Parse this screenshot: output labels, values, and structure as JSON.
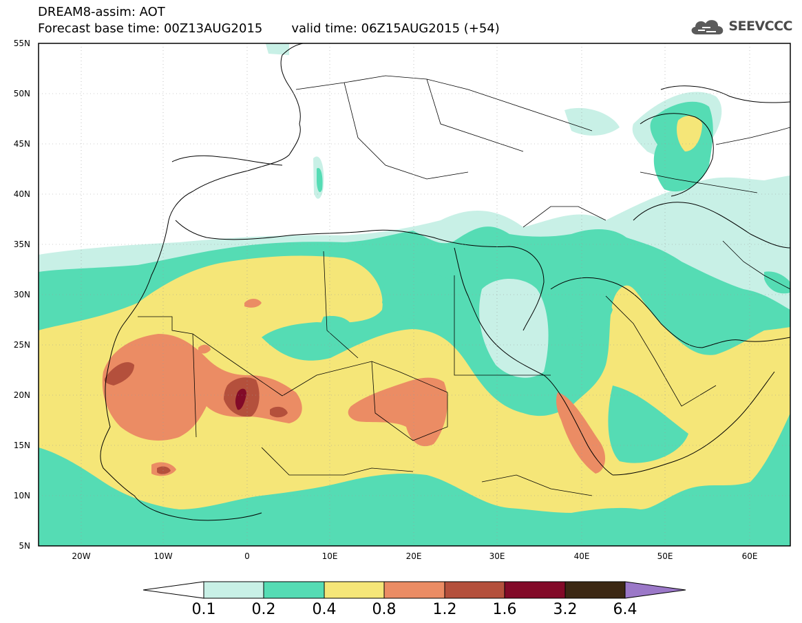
{
  "header": {
    "title": "DREAM8-assim: AOT",
    "base_time": "Forecast base time: 00Z13AUG2015",
    "valid_time": "valid time: 06Z15AUG2015 (+54)"
  },
  "logo": {
    "text": "SEEVCCC",
    "icon": "cloud-icon"
  },
  "map": {
    "lon_range": [
      -25,
      65
    ],
    "lat_range": [
      5,
      55
    ],
    "lat_labels": [
      "55N",
      "50N",
      "45N",
      "40N",
      "35N",
      "30N",
      "25N",
      "20N",
      "15N",
      "10N",
      "5N"
    ],
    "lon_labels": [
      "20W",
      "10W",
      "0",
      "10E",
      "20E",
      "30E",
      "40E",
      "50E",
      "60E"
    ]
  },
  "colorbar": {
    "labels": [
      "0.1",
      "0.2",
      "0.4",
      "0.8",
      "1.2",
      "1.6",
      "3.2",
      "6.4"
    ],
    "colors": [
      "#ffffff",
      "#c8f0e6",
      "#55dcb4",
      "#f5e678",
      "#eb8c64",
      "#b4503c",
      "#820a28",
      "#3c2814",
      "#9b78c8"
    ]
  }
}
